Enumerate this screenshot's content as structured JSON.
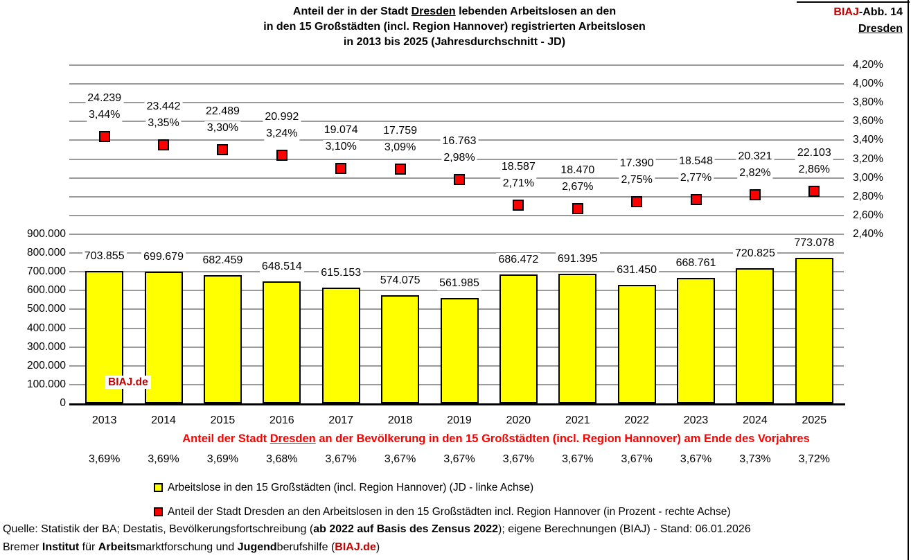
{
  "header": {
    "title_line1": [
      {
        "t": "Anteil der in der Stadt ",
        "b": 1
      },
      {
        "t": "Dresden",
        "b": 1,
        "u": 1
      },
      {
        "t": " lebenden Arbeitslosen an den",
        "b": 1
      }
    ],
    "title_line2": "in den 15 Großstädten (incl. Region Hannover) registrierten Arbeitslosen",
    "title_line3": [
      {
        "t": "in 2013 bis 2025",
        "b": 1
      },
      {
        "t": " (Jahresdurchschnitt - JD)"
      }
    ],
    "figure_ref": [
      {
        "t": "BIAJ",
        "b": 1,
        "c": "#C00000"
      },
      {
        "t": "-Abb. 14",
        "b": 1
      }
    ],
    "figure_city": "Dresden"
  },
  "watermark": "BIAJ.de",
  "colors": {
    "bar_fill": "#FFFF00",
    "marker_fill": "#FF0000",
    "biaj_red": "#C00000",
    "caption_red": "#FF0000",
    "gridline_gray": "#9a9a9a"
  },
  "chart_data": {
    "type": "bar",
    "title": "Anteil der in der Stadt Dresden lebenden Arbeitslosen an den in den 15 Großstädten (incl. Region Hannover) registrierten Arbeitslosen in 2013 bis 2025 (Jahresdurchschnitt - JD)",
    "categories": [
      "2013",
      "2014",
      "2015",
      "2016",
      "2017",
      "2018",
      "2019",
      "2020",
      "2021",
      "2022",
      "2023",
      "2024",
      "2025"
    ],
    "series": [
      {
        "name": "Arbeitslose in den 15 Großstädten (incl. Region Hannover) (JD - linke Achse)",
        "type": "bar",
        "axis": "left",
        "color": "#FFFF00",
        "values": [
          703855,
          699679,
          682459,
          648514,
          615153,
          574075,
          561985,
          686472,
          691395,
          631450,
          668761,
          720825,
          773078
        ],
        "labels": [
          "703.855",
          "699.679",
          "682.459",
          "648.514",
          "615.153",
          "574.075",
          "561.985",
          "686.472",
          "691.395",
          "631.450",
          "668.761",
          "720.825",
          "773.078"
        ]
      },
      {
        "name": "Anteil der Stadt Dresden an den Arbeitslosen in den 15 Großstädten incl. Region Hannover (in Prozent - rechte Achse)",
        "type": "scatter",
        "axis": "right",
        "color": "#FF0000",
        "values": [
          3.44,
          3.35,
          3.3,
          3.24,
          3.1,
          3.09,
          2.98,
          2.71,
          2.67,
          2.75,
          2.77,
          2.82,
          2.86
        ],
        "labels_percent": [
          "3,44%",
          "3,35%",
          "3,30%",
          "3,24%",
          "3,10%",
          "3,09%",
          "2,98%",
          "2,71%",
          "2,67%",
          "2,75%",
          "2,77%",
          "2,82%",
          "2,86%"
        ],
        "labels_count": [
          "24.239",
          "23.442",
          "22.489",
          "20.992",
          "19.074",
          "17.759",
          "16.763",
          "18.587",
          "18.470",
          "17.390",
          "18.548",
          "20.321",
          "22.103"
        ]
      }
    ],
    "axes": {
      "left": {
        "min": 0,
        "max": 900000,
        "ticks": [
          "0",
          "100.000",
          "200.000",
          "300.000",
          "400.000",
          "500.000",
          "600.000",
          "700.000",
          "800.000",
          "900.000"
        ]
      },
      "right": {
        "min": 2.4,
        "max": 4.2,
        "ticks": [
          "2,40%",
          "2,60%",
          "2,80%",
          "3,00%",
          "3,20%",
          "3,40%",
          "3,60%",
          "3,80%",
          "4,00%",
          "4,20%"
        ]
      }
    },
    "grid": true,
    "legend_position": "bottom",
    "layout_note": "left value axis occupies lower half of gridlines (0–900.000), right percent axis occupies upper half (2,40%–4,20%); shared gridline at 900.000 / 2,40%"
  },
  "population_row": {
    "label": [
      {
        "t": "Anteil der Stadt "
      },
      {
        "t": "Dresden",
        "u": 1
      },
      {
        "t": " an der Bevölkerung in den 15 Großstädten (incl. Region Hannover) am Ende des Vorjahres"
      }
    ],
    "values": [
      "3,69%",
      "3,69%",
      "3,69%",
      "3,68%",
      "3,67%",
      "3,67%",
      "3,67%",
      "3,67%",
      "3,67%",
      "3,67%",
      "3,67%",
      "3,73%",
      "3,72%"
    ]
  },
  "legend": {
    "items": [
      {
        "swatch": "#FFFF00",
        "label": "Arbeitslose in den 15 Großstädten (incl. Region Hannover) (JD - linke Achse)"
      },
      {
        "swatch": "#FF0000",
        "label": "Anteil der Stadt Dresden an den Arbeitslosen in den 15 Großstädten incl. Region Hannover (in Prozent - rechte Achse)"
      }
    ]
  },
  "footer": {
    "line1": [
      {
        "t": "Quelle: Statistik der BA; Destatis, Bevölkerungsfortschreibung ("
      },
      {
        "t": "ab 2022 auf Basis des Zensus 2022",
        "b": 1
      },
      {
        "t": "); eigene Berechnungen (BIAJ) - Stand: 06.01.2026"
      }
    ],
    "line2": [
      {
        "t": "Bremer "
      },
      {
        "t": "Institut",
        "b": 1
      },
      {
        "t": " für "
      },
      {
        "t": "Arbeits",
        "b": 1
      },
      {
        "t": "marktforschung und "
      },
      {
        "t": "Jugend",
        "b": 1
      },
      {
        "t": "berufshilfe ("
      },
      {
        "t": "BIAJ.de",
        "b": 1,
        "c": "#C00000"
      },
      {
        "t": ")"
      }
    ]
  }
}
